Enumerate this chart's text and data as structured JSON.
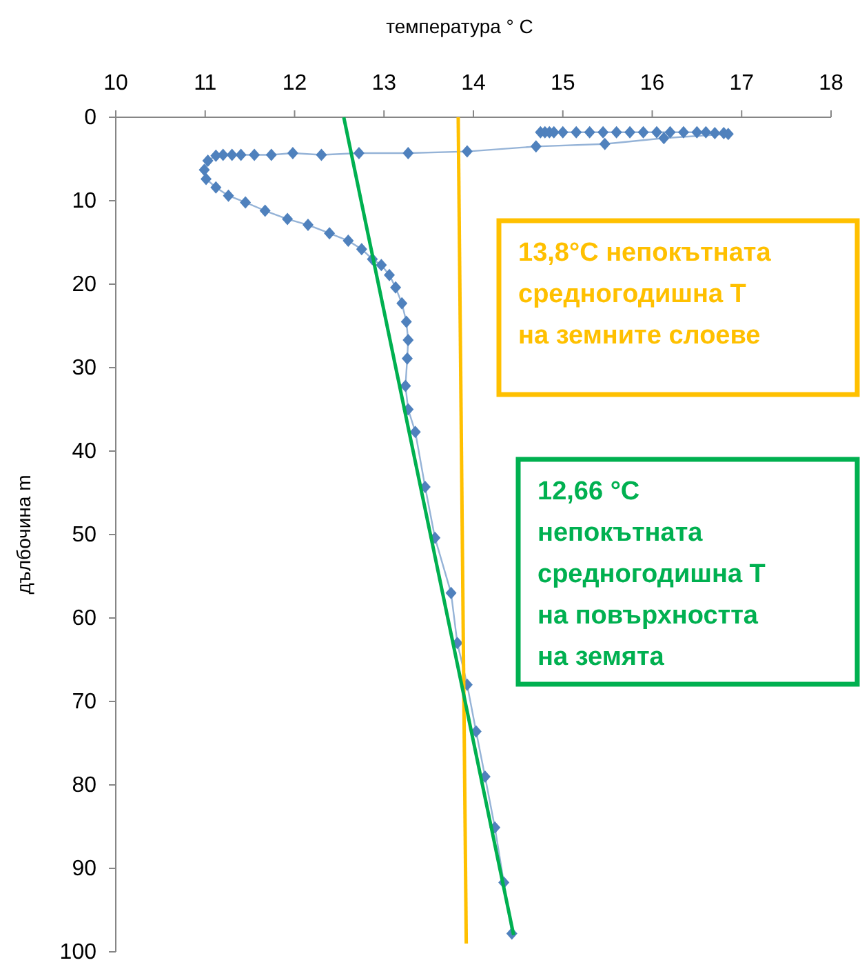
{
  "chart_data": {
    "type": "line",
    "xlabel": "температура ° C",
    "ylabel": "дълбочина m",
    "xlim": [
      10,
      18
    ],
    "xticks": [
      10,
      11,
      12,
      13,
      14,
      15,
      16,
      17,
      18
    ],
    "ylim": [
      100,
      0
    ],
    "yticks": [
      0,
      10,
      20,
      30,
      40,
      50,
      60,
      70,
      80,
      90,
      100
    ],
    "grid": false,
    "series": [
      {
        "color": "#4f81bd",
        "marker": "diamond",
        "x": [
          14.75,
          14.8,
          14.85,
          14.9,
          15.0,
          15.15,
          15.3,
          15.45,
          15.6,
          15.75,
          15.9,
          16.05,
          16.2,
          16.35,
          16.5,
          16.6,
          16.7,
          16.8,
          16.85,
          16.13,
          15.47,
          14.7,
          13.93,
          13.27,
          12.72,
          12.3,
          11.98,
          11.74,
          11.55,
          11.4,
          11.3,
          11.2,
          11.12,
          11.03,
          10.99,
          11.01,
          11.12,
          11.26,
          11.45,
          11.67,
          11.92,
          12.15,
          12.39,
          12.6,
          12.75,
          12.87,
          12.97,
          13.06,
          13.13,
          13.2,
          13.25,
          13.27,
          13.26,
          13.24,
          13.27,
          13.35,
          13.46,
          13.57,
          13.75,
          13.82,
          13.93,
          14.03,
          14.13,
          14.24,
          14.34,
          14.43
        ],
        "values": [
          1.8,
          1.8,
          1.8,
          1.8,
          1.8,
          1.8,
          1.8,
          1.8,
          1.8,
          1.8,
          1.8,
          1.8,
          1.8,
          1.8,
          1.8,
          1.8,
          1.9,
          1.9,
          2.0,
          2.5,
          3.2,
          3.5,
          4.1,
          4.3,
          4.3,
          4.5,
          4.3,
          4.5,
          4.5,
          4.5,
          4.5,
          4.5,
          4.6,
          5.2,
          6.3,
          7.4,
          8.4,
          9.4,
          10.2,
          11.2,
          12.2,
          12.9,
          13.9,
          14.8,
          15.8,
          17.0,
          17.7,
          18.9,
          20.4,
          22.3,
          24.5,
          26.7,
          28.9,
          32.2,
          35,
          37.7,
          44.3,
          50.4,
          57,
          63,
          68,
          73.6,
          79,
          85.1,
          91.7,
          97.8
        ]
      },
      {
        "color": "#ffc000",
        "marker": "none",
        "x": [
          13.83,
          13.92
        ],
        "values": [
          0,
          99
        ]
      },
      {
        "color": "#00b050",
        "marker": "none",
        "x": [
          12.55,
          14.45
        ],
        "values": [
          0,
          98
        ]
      }
    ],
    "annotations": [
      "13,8°C непокътната\nсредногодишна Т\nна земните слоеве",
      "12,66 °C\nнепокътната\nсредногодишна Т\nна повърхността\nна земята"
    ]
  }
}
